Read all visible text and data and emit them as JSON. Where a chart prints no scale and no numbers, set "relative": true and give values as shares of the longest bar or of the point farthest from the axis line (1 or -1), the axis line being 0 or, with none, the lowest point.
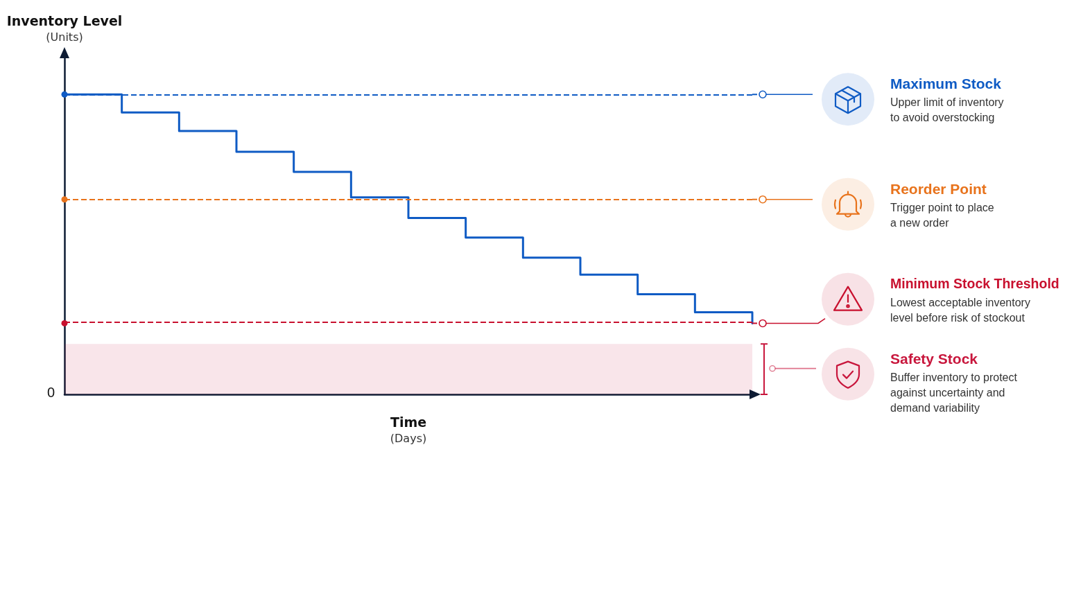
{
  "chart_data": {
    "type": "step",
    "relative": true,
    "xlabel": "Time\n(Days)",
    "ylabel": "Inventory Level\n(Units)",
    "categories": [
      null,
      null,
      null,
      null,
      null,
      null,
      null,
      null,
      null,
      null,
      null,
      null,
      null
    ],
    "series": [
      {
        "color": "#0f5bc4",
        "values": [
          1,
          0.94,
          0.878,
          0.809,
          0.742,
          0.657,
          0.588,
          0.523,
          0.456,
          0.399,
          0.334,
          0.274,
          0.237
        ]
      }
    ],
    "ref_lines": [
      {
        "axis": "y",
        "value": 1,
        "label": "Maximum Stock",
        "color": "#0f5bc4",
        "line_style": "dashed"
      },
      {
        "axis": "y",
        "value": 0.65,
        "label": "Reorder Point",
        "color": "#e8731c",
        "line_style": "dashed"
      },
      {
        "axis": "y",
        "value": 0.237,
        "label": "Minimum Stock Threshold",
        "color": "#c8102e",
        "line_style": "dashed"
      }
    ],
    "bands": [
      {
        "axis": "y",
        "from": 0,
        "to": 0.168,
        "label": "Safety Stock",
        "color": "#c8163c"
      }
    ],
    "annotations": [
      "0",
      "Upper limit of inventory\nto avoid overstocking",
      "Trigger point to place\na new order",
      "Lowest acceptable inventory\nlevel before risk of stockout",
      "Buffer inventory to protect\nagainst uncertainty and\ndemand variability"
    ],
    "grid": false,
    "marker": "none",
    "line_style": "solid"
  }
}
